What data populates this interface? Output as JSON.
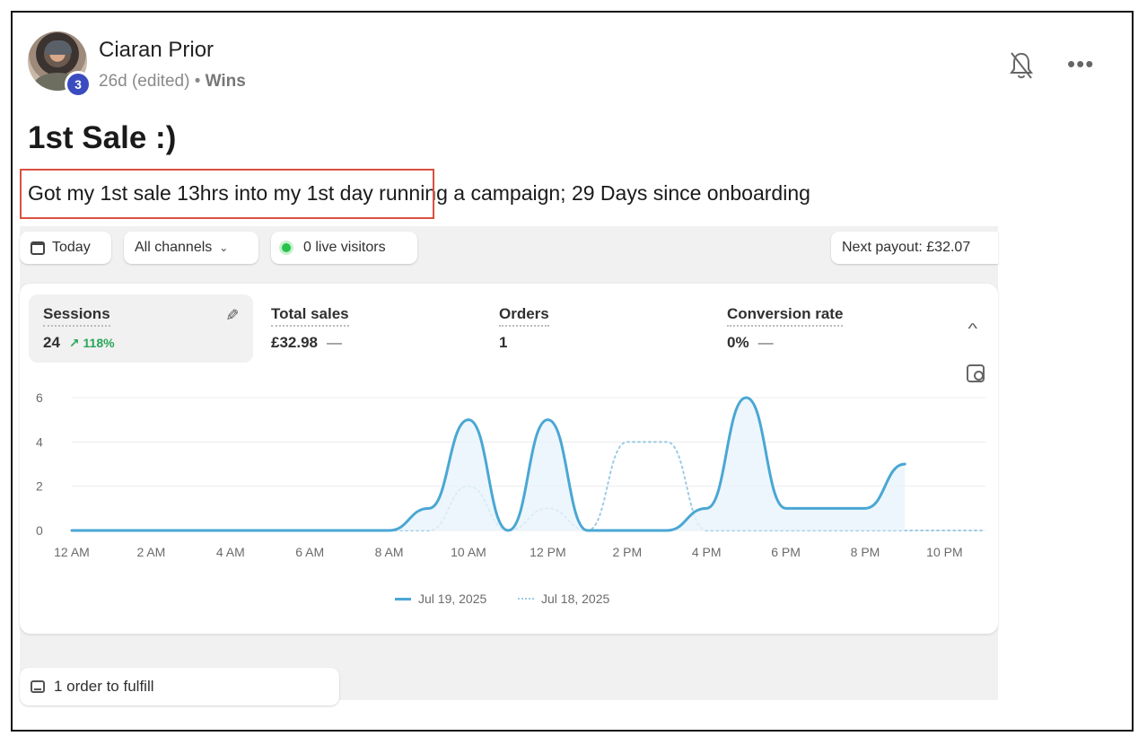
{
  "post": {
    "author": "Ciaran Prior",
    "level": "3",
    "time": "26d (edited)",
    "separator": "•",
    "category": "Wins",
    "title": "1st Sale :)",
    "body": "Got my 1st sale 13hrs into my 1st day running a campaign; 29 Days since onboarding"
  },
  "icons": {
    "bell": "bell-off-icon",
    "more": "more-options-icon"
  },
  "dashboard": {
    "date_filter": "Today",
    "channel_filter": "All channels",
    "live_visitors": "0 live visitors",
    "payout": "Next payout: £32.07",
    "metrics": [
      {
        "label": "Sessions",
        "value": "24",
        "trend": "↗ 118%"
      },
      {
        "label": "Total sales",
        "value": "£32.98",
        "trend": "—"
      },
      {
        "label": "Orders",
        "value": "1",
        "trend": ""
      },
      {
        "label": "Conversion rate",
        "value": "0%",
        "trend": "—"
      }
    ],
    "fulfill": "1 order to fulfill"
  },
  "chart_data": {
    "type": "line",
    "x_labels": [
      "12 AM",
      "2 AM",
      "4 AM",
      "6 AM",
      "8 AM",
      "10 AM",
      "12 PM",
      "2 PM",
      "4 PM",
      "6 PM",
      "8 PM",
      "10 PM"
    ],
    "y_ticks": [
      "0",
      "2",
      "4",
      "6"
    ],
    "ylim": [
      0,
      6
    ],
    "hours": [
      0,
      1,
      2,
      3,
      4,
      5,
      6,
      7,
      8,
      9,
      10,
      11,
      12,
      13,
      14,
      15,
      16,
      17,
      18,
      19,
      20,
      21,
      22,
      23
    ],
    "series": [
      {
        "name": "Jul 19, 2025",
        "values": [
          0,
          0,
          0,
          0,
          0,
          0,
          0,
          0,
          0,
          1,
          5,
          0,
          5,
          0,
          0,
          0,
          1,
          6,
          1,
          1,
          1,
          3,
          null,
          null
        ],
        "color": "#4aa7d4"
      },
      {
        "name": "Jul 18, 2025",
        "values": [
          0,
          0,
          0,
          0,
          0,
          0,
          0,
          0,
          0,
          0,
          2,
          0,
          1,
          0,
          4,
          4,
          0,
          0,
          0,
          0,
          0,
          0,
          0,
          0
        ],
        "color": "#9ccbe6"
      }
    ],
    "grid": true,
    "legend": "bottom"
  }
}
